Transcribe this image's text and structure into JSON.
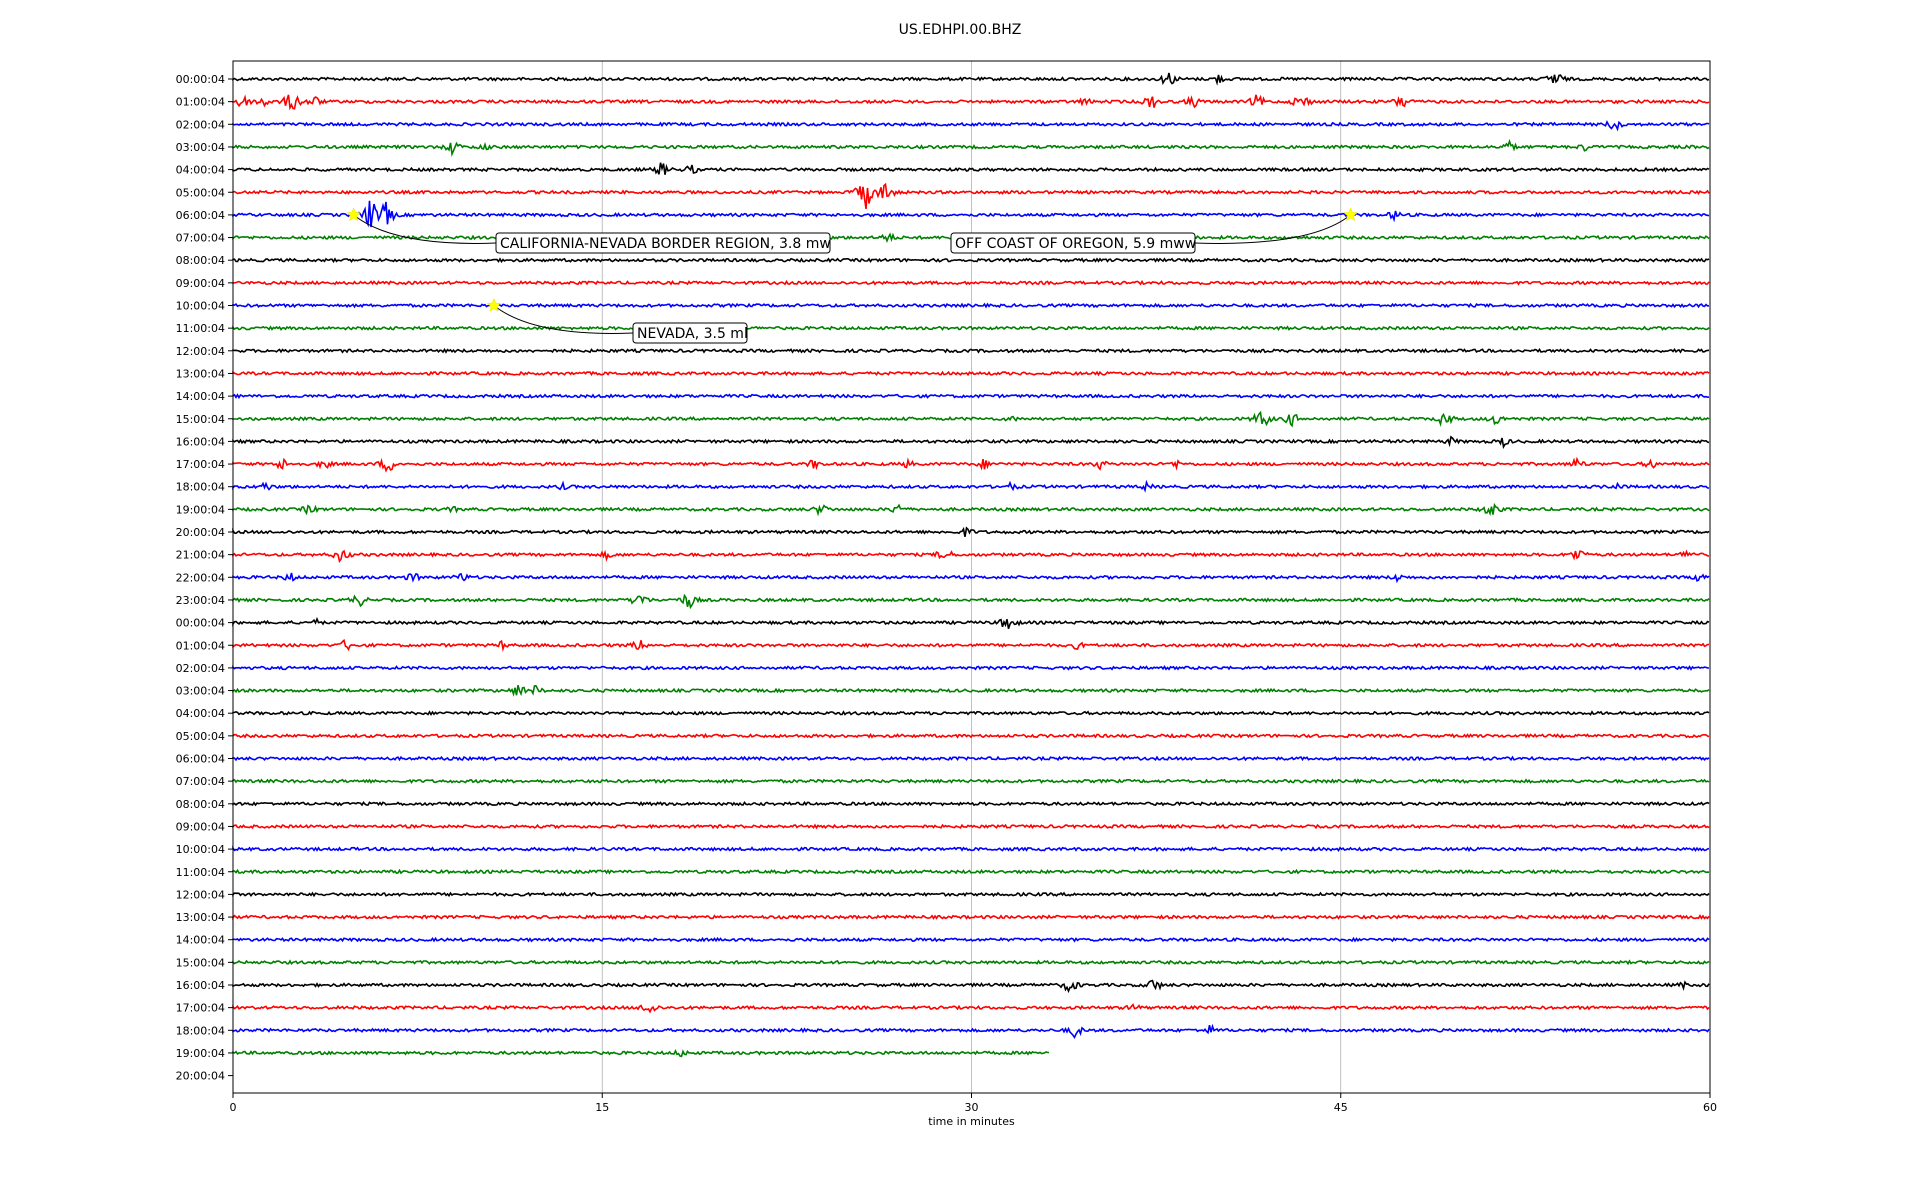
{
  "chart_data": {
    "type": "line",
    "title": "US.EDHPI.00.BHZ",
    "xlabel": "time in minutes",
    "ylabel": "",
    "xlim": [
      0,
      60
    ],
    "x_ticks": [
      "0",
      "15",
      "30",
      "45",
      "60"
    ],
    "grid": "vertical",
    "row_labels": [
      "00:00:04",
      "01:00:04",
      "02:00:04",
      "03:00:04",
      "04:00:04",
      "05:00:04",
      "06:00:04",
      "07:00:04",
      "08:00:04",
      "09:00:04",
      "10:00:04",
      "11:00:04",
      "12:00:04",
      "13:00:04",
      "14:00:04",
      "15:00:04",
      "16:00:04",
      "17:00:04",
      "18:00:04",
      "19:00:04",
      "20:00:04",
      "21:00:04",
      "22:00:04",
      "23:00:04",
      "00:00:04",
      "01:00:04",
      "02:00:04",
      "03:00:04",
      "04:00:04",
      "05:00:04",
      "06:00:04",
      "07:00:04",
      "08:00:04",
      "09:00:04",
      "10:00:04",
      "11:00:04",
      "12:00:04",
      "13:00:04",
      "14:00:04",
      "15:00:04",
      "16:00:04",
      "17:00:04",
      "18:00:04",
      "19:00:04",
      "20:00:04"
    ],
    "trace_colors": [
      "#000000",
      "#ff0000",
      "#0000ff",
      "#008000"
    ],
    "last_trace_end_minute": 33.2,
    "events": [
      {
        "label": "CALIFORNIA-NEVADA BORDER REGION, 3.8 mw",
        "row": 6,
        "minute": 4.9,
        "marker_color": "#ffff00"
      },
      {
        "label": "OFF COAST OF OREGON, 5.9 mww",
        "row": 6,
        "minute": 45.4,
        "marker_color": "#ffff00"
      },
      {
        "label": "NEVADA, 3.5 ml",
        "row": 10,
        "minute": 10.6,
        "marker_color": "#ffff00"
      }
    ],
    "bursts": [
      {
        "row": 0,
        "minute": 38.0,
        "amp": 9
      },
      {
        "row": 0,
        "minute": 40.0,
        "amp": 6
      },
      {
        "row": 0,
        "minute": 53.7,
        "amp": 10
      },
      {
        "row": 1,
        "minute": 0.3,
        "amp": 10
      },
      {
        "row": 1,
        "minute": 1.2,
        "amp": 8
      },
      {
        "row": 1,
        "minute": 2.4,
        "amp": 12
      },
      {
        "row": 1,
        "minute": 3.3,
        "amp": 7
      },
      {
        "row": 1,
        "minute": 34.6,
        "amp": 5
      },
      {
        "row": 1,
        "minute": 37.3,
        "amp": 9
      },
      {
        "row": 1,
        "minute": 39.0,
        "amp": 7
      },
      {
        "row": 1,
        "minute": 41.6,
        "amp": 8
      },
      {
        "row": 1,
        "minute": 43.4,
        "amp": 10
      },
      {
        "row": 1,
        "minute": 47.5,
        "amp": 9
      },
      {
        "row": 2,
        "minute": 56.1,
        "amp": 8
      },
      {
        "row": 3,
        "minute": 8.9,
        "amp": 8
      },
      {
        "row": 3,
        "minute": 10.2,
        "amp": 5
      },
      {
        "row": 3,
        "minute": 51.8,
        "amp": 7
      },
      {
        "row": 3,
        "minute": 54.9,
        "amp": 5
      },
      {
        "row": 4,
        "minute": 17.4,
        "amp": 9
      },
      {
        "row": 4,
        "minute": 18.6,
        "amp": 6
      },
      {
        "row": 5,
        "minute": 25.7,
        "amp": 18
      },
      {
        "row": 5,
        "minute": 26.5,
        "amp": 12
      },
      {
        "row": 6,
        "minute": 5.6,
        "amp": 18
      },
      {
        "row": 6,
        "minute": 6.2,
        "amp": 14
      },
      {
        "row": 6,
        "minute": 47.2,
        "amp": 6
      },
      {
        "row": 7,
        "minute": 26.6,
        "amp": 6
      },
      {
        "row": 15,
        "minute": 31.6,
        "amp": 4
      },
      {
        "row": 15,
        "minute": 41.8,
        "amp": 11
      },
      {
        "row": 15,
        "minute": 43.0,
        "amp": 8
      },
      {
        "row": 15,
        "minute": 49.2,
        "amp": 9
      },
      {
        "row": 15,
        "minute": 51.3,
        "amp": 7
      },
      {
        "row": 16,
        "minute": 49.5,
        "amp": 5
      },
      {
        "row": 16,
        "minute": 51.6,
        "amp": 6
      },
      {
        "row": 17,
        "minute": 2.0,
        "amp": 7
      },
      {
        "row": 17,
        "minute": 3.7,
        "amp": 6
      },
      {
        "row": 17,
        "minute": 6.3,
        "amp": 10
      },
      {
        "row": 17,
        "minute": 23.6,
        "amp": 6
      },
      {
        "row": 17,
        "minute": 27.4,
        "amp": 5
      },
      {
        "row": 17,
        "minute": 30.5,
        "amp": 6
      },
      {
        "row": 17,
        "minute": 35.2,
        "amp": 6
      },
      {
        "row": 17,
        "minute": 38.3,
        "amp": 5
      },
      {
        "row": 17,
        "minute": 54.6,
        "amp": 7
      },
      {
        "row": 17,
        "minute": 57.6,
        "amp": 6
      },
      {
        "row": 18,
        "minute": 1.3,
        "amp": 6
      },
      {
        "row": 18,
        "minute": 13.4,
        "amp": 4
      },
      {
        "row": 18,
        "minute": 31.6,
        "amp": 5
      },
      {
        "row": 18,
        "minute": 37.1,
        "amp": 5
      },
      {
        "row": 18,
        "minute": 56.2,
        "amp": 5
      },
      {
        "row": 19,
        "minute": 3.1,
        "amp": 6
      },
      {
        "row": 19,
        "minute": 8.9,
        "amp": 4
      },
      {
        "row": 19,
        "minute": 23.9,
        "amp": 7
      },
      {
        "row": 19,
        "minute": 27.0,
        "amp": 7
      },
      {
        "row": 19,
        "minute": 51.1,
        "amp": 10
      },
      {
        "row": 20,
        "minute": 29.8,
        "amp": 6
      },
      {
        "row": 21,
        "minute": 4.4,
        "amp": 9
      },
      {
        "row": 21,
        "minute": 15.2,
        "amp": 5
      },
      {
        "row": 21,
        "minute": 28.9,
        "amp": 8
      },
      {
        "row": 21,
        "minute": 54.6,
        "amp": 8
      },
      {
        "row": 21,
        "minute": 59.1,
        "amp": 6
      },
      {
        "row": 22,
        "minute": 2.3,
        "amp": 6
      },
      {
        "row": 22,
        "minute": 7.3,
        "amp": 6
      },
      {
        "row": 22,
        "minute": 9.3,
        "amp": 6
      },
      {
        "row": 22,
        "minute": 47.3,
        "amp": 5
      },
      {
        "row": 22,
        "minute": 59.7,
        "amp": 8
      },
      {
        "row": 23,
        "minute": 5.1,
        "amp": 8
      },
      {
        "row": 23,
        "minute": 16.5,
        "amp": 9
      },
      {
        "row": 23,
        "minute": 18.5,
        "amp": 10
      },
      {
        "row": 24,
        "minute": 3.4,
        "amp": 4
      },
      {
        "row": 24,
        "minute": 31.5,
        "amp": 10
      },
      {
        "row": 25,
        "minute": 4.6,
        "amp": 7
      },
      {
        "row": 25,
        "minute": 10.9,
        "amp": 5
      },
      {
        "row": 25,
        "minute": 16.5,
        "amp": 7
      },
      {
        "row": 25,
        "minute": 34.3,
        "amp": 5
      },
      {
        "row": 27,
        "minute": 11.6,
        "amp": 8
      },
      {
        "row": 27,
        "minute": 12.3,
        "amp": 6
      },
      {
        "row": 40,
        "minute": 34.0,
        "amp": 9
      },
      {
        "row": 40,
        "minute": 37.4,
        "amp": 8
      },
      {
        "row": 40,
        "minute": 58.9,
        "amp": 4
      },
      {
        "row": 41,
        "minute": 16.9,
        "amp": 9
      },
      {
        "row": 41,
        "minute": 36.6,
        "amp": 5
      },
      {
        "row": 42,
        "minute": 34.2,
        "amp": 8
      },
      {
        "row": 42,
        "minute": 39.7,
        "amp": 6
      },
      {
        "row": 43,
        "minute": 18.2,
        "amp": 5
      }
    ]
  }
}
